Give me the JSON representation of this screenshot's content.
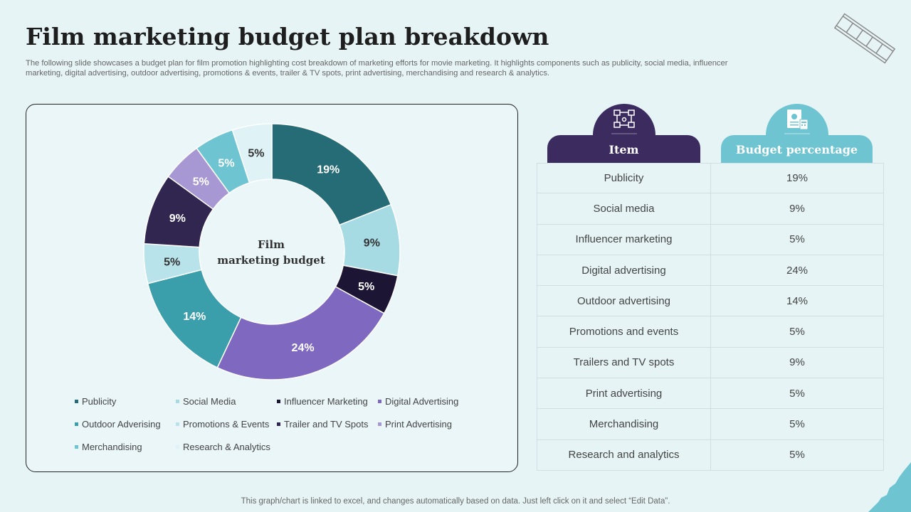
{
  "title": "Film marketing budget plan breakdown",
  "subtitle": "The following slide showcases a budget plan for film promotion highlighting cost breakdown of marketing efforts for movie marketing. It highlights components such as publicity, social media, influencer marketing, digital advertising, outdoor advertising, promotions & events, trailer & TV spots, print advertising, merchandising and research & analytics.",
  "footer": "This graph/chart is linked to excel, and changes automatically based on data. Just left click on it and select “Edit Data”.",
  "chart_data": {
    "type": "pie",
    "center_label": [
      "Film",
      "marketing budget"
    ],
    "categories": [
      "Publicity",
      "Social Media",
      "Influencer Marketing",
      "Digital Advertising",
      "Outdoor Adverising",
      "Promotions & Events",
      "Trailer and TV Spots",
      "Print Advertising",
      "Merchandising",
      "Research & Analytics"
    ],
    "values": [
      19,
      9,
      5,
      24,
      14,
      5,
      9,
      5,
      5,
      5
    ],
    "labels": [
      "19%",
      "9%",
      "5%",
      "24%",
      "14%",
      "5%",
      "9%",
      "5%",
      "5%",
      "5%"
    ],
    "colors": [
      "#256c77",
      "#a6dbe3",
      "#1c1533",
      "#7f68bf",
      "#3a9eab",
      "#b9e3ea",
      "#30264f",
      "#a797d3",
      "#6ec4d0",
      "#dff2f5"
    ],
    "label_colors": [
      "#ffffff",
      "#333333",
      "#ffffff",
      "#ffffff",
      "#ffffff",
      "#333333",
      "#ffffff",
      "#ffffff",
      "#ffffff",
      "#333333"
    ],
    "legend_position": "bottom"
  },
  "table": {
    "header_item": "Item",
    "header_budget": "Budget percentage",
    "header_item_icon": "org-chart-icon",
    "header_budget_icon": "document-icon",
    "header_item_color": "#3b2b5e",
    "header_budget_color": "#6ec4d0",
    "rows": [
      {
        "item": "Publicity",
        "pct": "19%"
      },
      {
        "item": "Social media",
        "pct": "9%"
      },
      {
        "item": "Influencer marketing",
        "pct": "5%"
      },
      {
        "item": "Digital advertising",
        "pct": "24%"
      },
      {
        "item": "Outdoor advertising",
        "pct": "14%"
      },
      {
        "item": "Promotions and events",
        "pct": "5%"
      },
      {
        "item": "Trailers and TV spots",
        "pct": "9%"
      },
      {
        "item": "Print advertising",
        "pct": "5%"
      },
      {
        "item": "Merchandising",
        "pct": "5%"
      },
      {
        "item": "Research and analytics",
        "pct": "5%"
      }
    ]
  }
}
